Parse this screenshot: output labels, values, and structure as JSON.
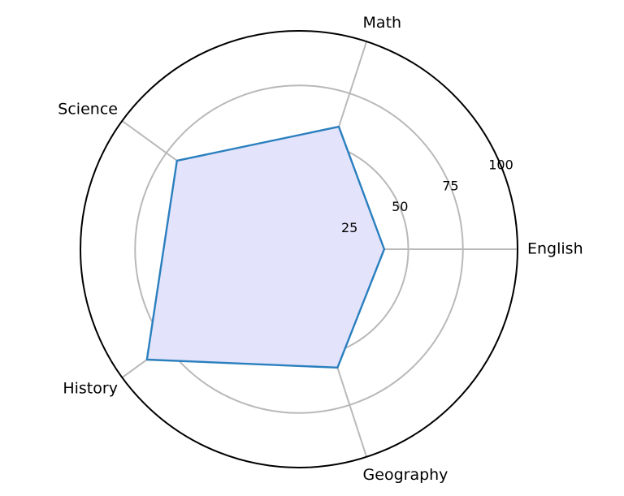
{
  "chart_data": {
    "type": "radar",
    "categories": [
      "English",
      "Math",
      "Science",
      "History",
      "Geography"
    ],
    "series": [
      {
        "values": [
          39,
          59,
          69,
          86,
          57
        ]
      }
    ],
    "rlim": [
      0,
      100
    ],
    "r_ticks": [
      25,
      50,
      75,
      100
    ],
    "r_tick_labels": [
      "25",
      "50",
      "75",
      "100"
    ],
    "grid": true,
    "colors": {
      "line": "#2a7fbe",
      "fill": "#e3e3fb",
      "grid": "#b9b9b9",
      "frame": "#000000"
    }
  }
}
